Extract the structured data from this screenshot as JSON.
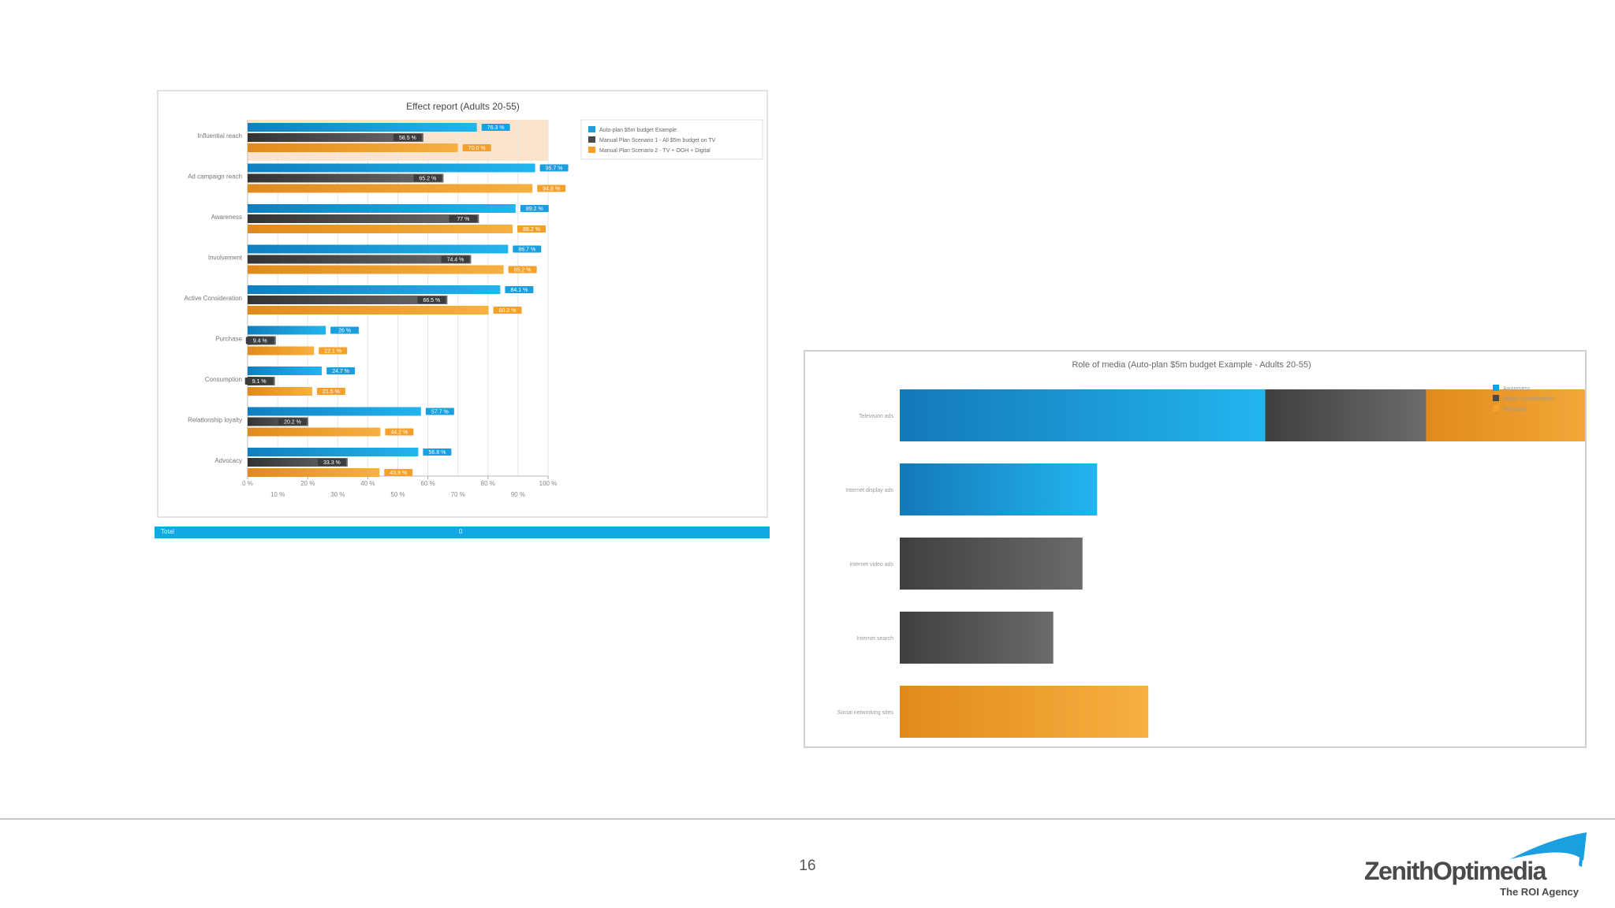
{
  "page": {
    "number": "16",
    "footer_bar_left": "Total",
    "footer_bar_mid": "0"
  },
  "logo": {
    "name": "ZenithOptimedia",
    "tagline": "The ROI Agency",
    "color": "#4a4a4a",
    "accent": "#1a9fe0"
  },
  "colors": {
    "blue": "#1a9fe0",
    "dark": "#4a4a4a",
    "orange": "#f5a02a"
  },
  "chart_data": [
    {
      "type": "bar",
      "orientation": "horizontal",
      "title": "Effect report (Adults 20-55)",
      "categories": [
        "Influential reach",
        "Ad campaign reach",
        "Awareness",
        "Involvement",
        "Active Consideration",
        "Purchase",
        "Consumption",
        "Relationship loyalty",
        "Advocacy"
      ],
      "series": [
        {
          "name": "Auto-plan $5m budget Example",
          "color": "#1a9fe0",
          "values": [
            76.3,
            95.7,
            89.2,
            86.7,
            84.1,
            26,
            24.7,
            57.7,
            56.8
          ]
        },
        {
          "name": "Manual Plan Scenario 1 - All $5m budget on TV",
          "color": "#4a4a4a",
          "values": [
            58.5,
            65.2,
            77,
            74.4,
            66.5,
            9.4,
            9.1,
            20.2,
            33.3
          ]
        },
        {
          "name": "Manual Plan Scenario 2 - TV + OOH + Digital",
          "color": "#f5a02a",
          "values": [
            70,
            94.8,
            88.2,
            85.2,
            80.2,
            22.1,
            21.5,
            44.2,
            43.9
          ]
        }
      ],
      "data_labels": [
        [
          "76.3 %",
          "58.5 %",
          "70.0 %"
        ],
        [
          "95.7 %",
          "65.2 %",
          "94.8 %"
        ],
        [
          "89.2 %",
          "77 %",
          "88.2 %"
        ],
        [
          "86.7 %",
          "74.4 %",
          "85.2 %"
        ],
        [
          "84.1 %",
          "66.5 %",
          "80.2 %"
        ],
        [
          "26 %",
          "9.4 %",
          "22.1 %"
        ],
        [
          "24.7 %",
          "9.1 %",
          "21.5 %"
        ],
        [
          "57.7 %",
          "20.2 %",
          "44.2 %"
        ],
        [
          "56.8 %",
          "33.3 %",
          "43.9 %"
        ]
      ],
      "xlim": [
        0,
        100
      ],
      "xticks_upper": [
        "0 %",
        "20 %",
        "40 %",
        "60 %",
        "80 %",
        "100 %"
      ],
      "xticks_lower": [
        "10 %",
        "30 %",
        "50 %",
        "70 %",
        "90 %"
      ],
      "highlight_range": [
        0,
        100
      ],
      "grid": true,
      "legend": "top-right"
    },
    {
      "type": "bar",
      "orientation": "horizontal",
      "stacked": true,
      "title": "Role of media (Auto-plan $5m budget Example - Adults 20-55)",
      "categories": [
        "Television ads",
        "Internet display ads",
        "Internet video ads",
        "Internet search",
        "Social networking sites"
      ],
      "series": [
        {
          "name": "Awareness",
          "color": "#1a9fe0",
          "values": [
            50,
            27,
            0,
            0,
            0
          ]
        },
        {
          "name": "Active Consideration",
          "color": "#4a4a4a",
          "values": [
            22,
            0,
            25,
            21,
            0
          ]
        },
        {
          "name": "Advocacy",
          "color": "#f5a02a",
          "values": [
            28,
            0,
            0,
            0,
            34
          ]
        }
      ],
      "xlim": [
        0,
        100
      ],
      "grid": false,
      "legend": "top-right"
    }
  ]
}
